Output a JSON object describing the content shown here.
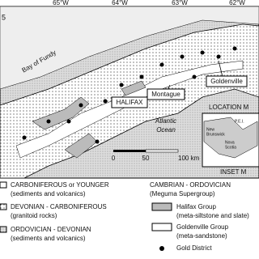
{
  "map": {
    "corner_label": "5",
    "longitudes": [
      "65°W",
      "64°W",
      "63°W",
      "62°W"
    ],
    "places": {
      "bay": "Bay of Fundy",
      "halifax": "HALIFAX",
      "montague": "Montague",
      "goldenville": "Goldenville",
      "ocean_1": "Atlantic",
      "ocean_2": "Ocean"
    },
    "scale": [
      "0",
      "50",
      "100 km"
    ],
    "inset": {
      "title": "LOCATION M",
      "footer": "INSET M",
      "pei": "P.E.I.",
      "nb_1": "New",
      "nb_2": "Brunswick",
      "ns_1": "Nova",
      "ns_2": "Scotia"
    }
  },
  "legend": {
    "left": [
      {
        "title": "CARBONIFEROUS or YOUNGER",
        "note": "(sediments and volcanics)"
      },
      {
        "title": "DEVONIAN - CARBONIFEROUS",
        "note": "(granitoid rocks)"
      },
      {
        "title": "ORDOVICIAN - DEVONIAN",
        "note": "(sediments and volcanics)"
      }
    ],
    "right": {
      "title": "CAMBRIAN - ORDOVICIAN",
      "note": "(Meguma Supergroup)",
      "items": [
        {
          "title": "Halifax Group",
          "note": "(meta-siltstone and slate)"
        },
        {
          "title": "Goldenville Group",
          "note": "(meta-sandstone)"
        },
        {
          "title": "Gold District"
        }
      ]
    }
  }
}
